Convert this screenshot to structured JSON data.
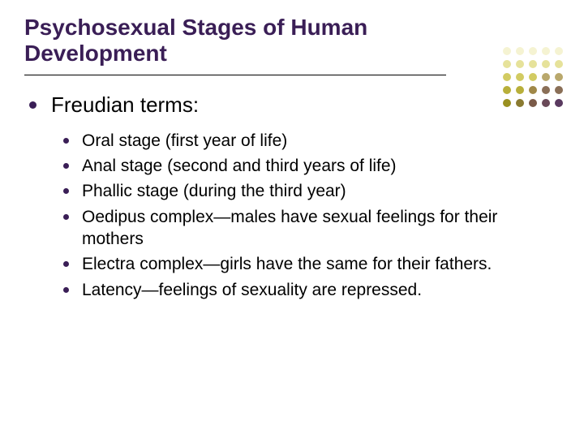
{
  "title": "Psychosexual Stages of Human Development",
  "title_color": "#3a1e56",
  "title_fontsize": 28,
  "underline_color": "#000000",
  "bullet_color": "#3a1e56",
  "text_color": "#000000",
  "heading": "Freudian terms:",
  "heading_fontsize": 26,
  "sub_fontsize": 21,
  "items": [
    "Oral stage (first year of life)",
    "Anal stage (second and third years of life)",
    "Phallic stage (during the third year)",
    "Oedipus complex—males have sexual feelings for their mothers",
    "Electra complex—girls have the same for their fathers.",
    "Latency—feelings of sexuality are repressed."
  ],
  "deco_dots": {
    "colors_row": [
      [
        "#f5f3d2",
        "#f5f3d2",
        "#f5f3d2",
        "#f5f3d2",
        "#f5f3d2"
      ],
      [
        "#e6e29a",
        "#e6e29a",
        "#e6e29a",
        "#e6e29a",
        "#e6e29a"
      ],
      [
        "#d2cb62",
        "#d2cb62",
        "#d2cb62",
        "#b9a86c",
        "#b9a86c"
      ],
      [
        "#b8af3a",
        "#b8af3a",
        "#a08848",
        "#8a6f57",
        "#8a6f57"
      ],
      [
        "#9a9020",
        "#8a7a30",
        "#7a5a48",
        "#6a4958",
        "#5a3a60"
      ]
    ]
  }
}
